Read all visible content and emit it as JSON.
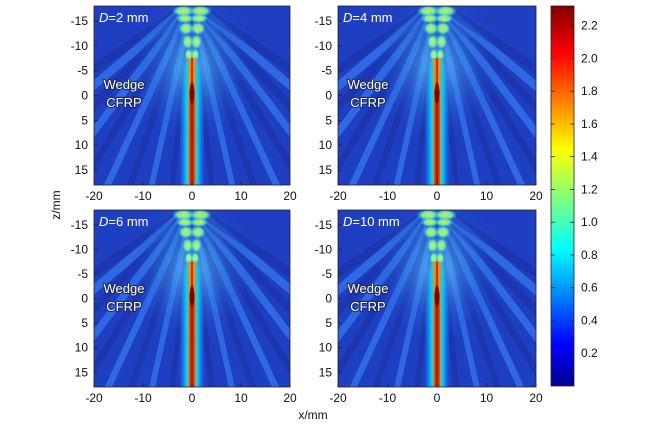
{
  "chart_data": {
    "type": "heatmap",
    "xlabel": "x/mm",
    "ylabel": "z/mm",
    "xlim": [
      -20,
      20
    ],
    "ylim": [
      -18,
      18
    ],
    "y_inverted": true,
    "x_ticks": [
      -20,
      -10,
      0,
      10,
      20
    ],
    "y_ticks": [
      -15,
      -10,
      -5,
      0,
      5,
      10,
      15
    ],
    "colorbar": {
      "min": 0,
      "max": 2.32,
      "ticks": [
        0.2,
        0.4,
        0.6,
        0.8,
        1.0,
        1.2,
        1.4,
        1.6,
        1.8,
        2.0,
        2.2
      ],
      "tick_labels": [
        "0.2",
        "0.4",
        "0.6",
        "0.8",
        "1.0",
        "1.2",
        "1.4",
        "1.6",
        "1.8",
        "2.0",
        "2.2"
      ],
      "colormap": "jet"
    },
    "panels": [
      {
        "d_label": "D",
        "d_value": "=2 mm",
        "material_top": "Wedge",
        "material_bottom": "CFRP",
        "peak_value": 2.2
      },
      {
        "d_label": "D",
        "d_value": "=4 mm",
        "material_top": "Wedge",
        "material_bottom": "CFRP",
        "peak_value": 2.25
      },
      {
        "d_label": "D",
        "d_value": "=6 mm",
        "material_top": "Wedge",
        "material_bottom": "CFRP",
        "peak_value": 2.28
      },
      {
        "d_label": "D",
        "d_value": "=10 mm",
        "material_top": "Wedge",
        "material_bottom": "CFRP",
        "peak_value": 2.3
      }
    ]
  }
}
